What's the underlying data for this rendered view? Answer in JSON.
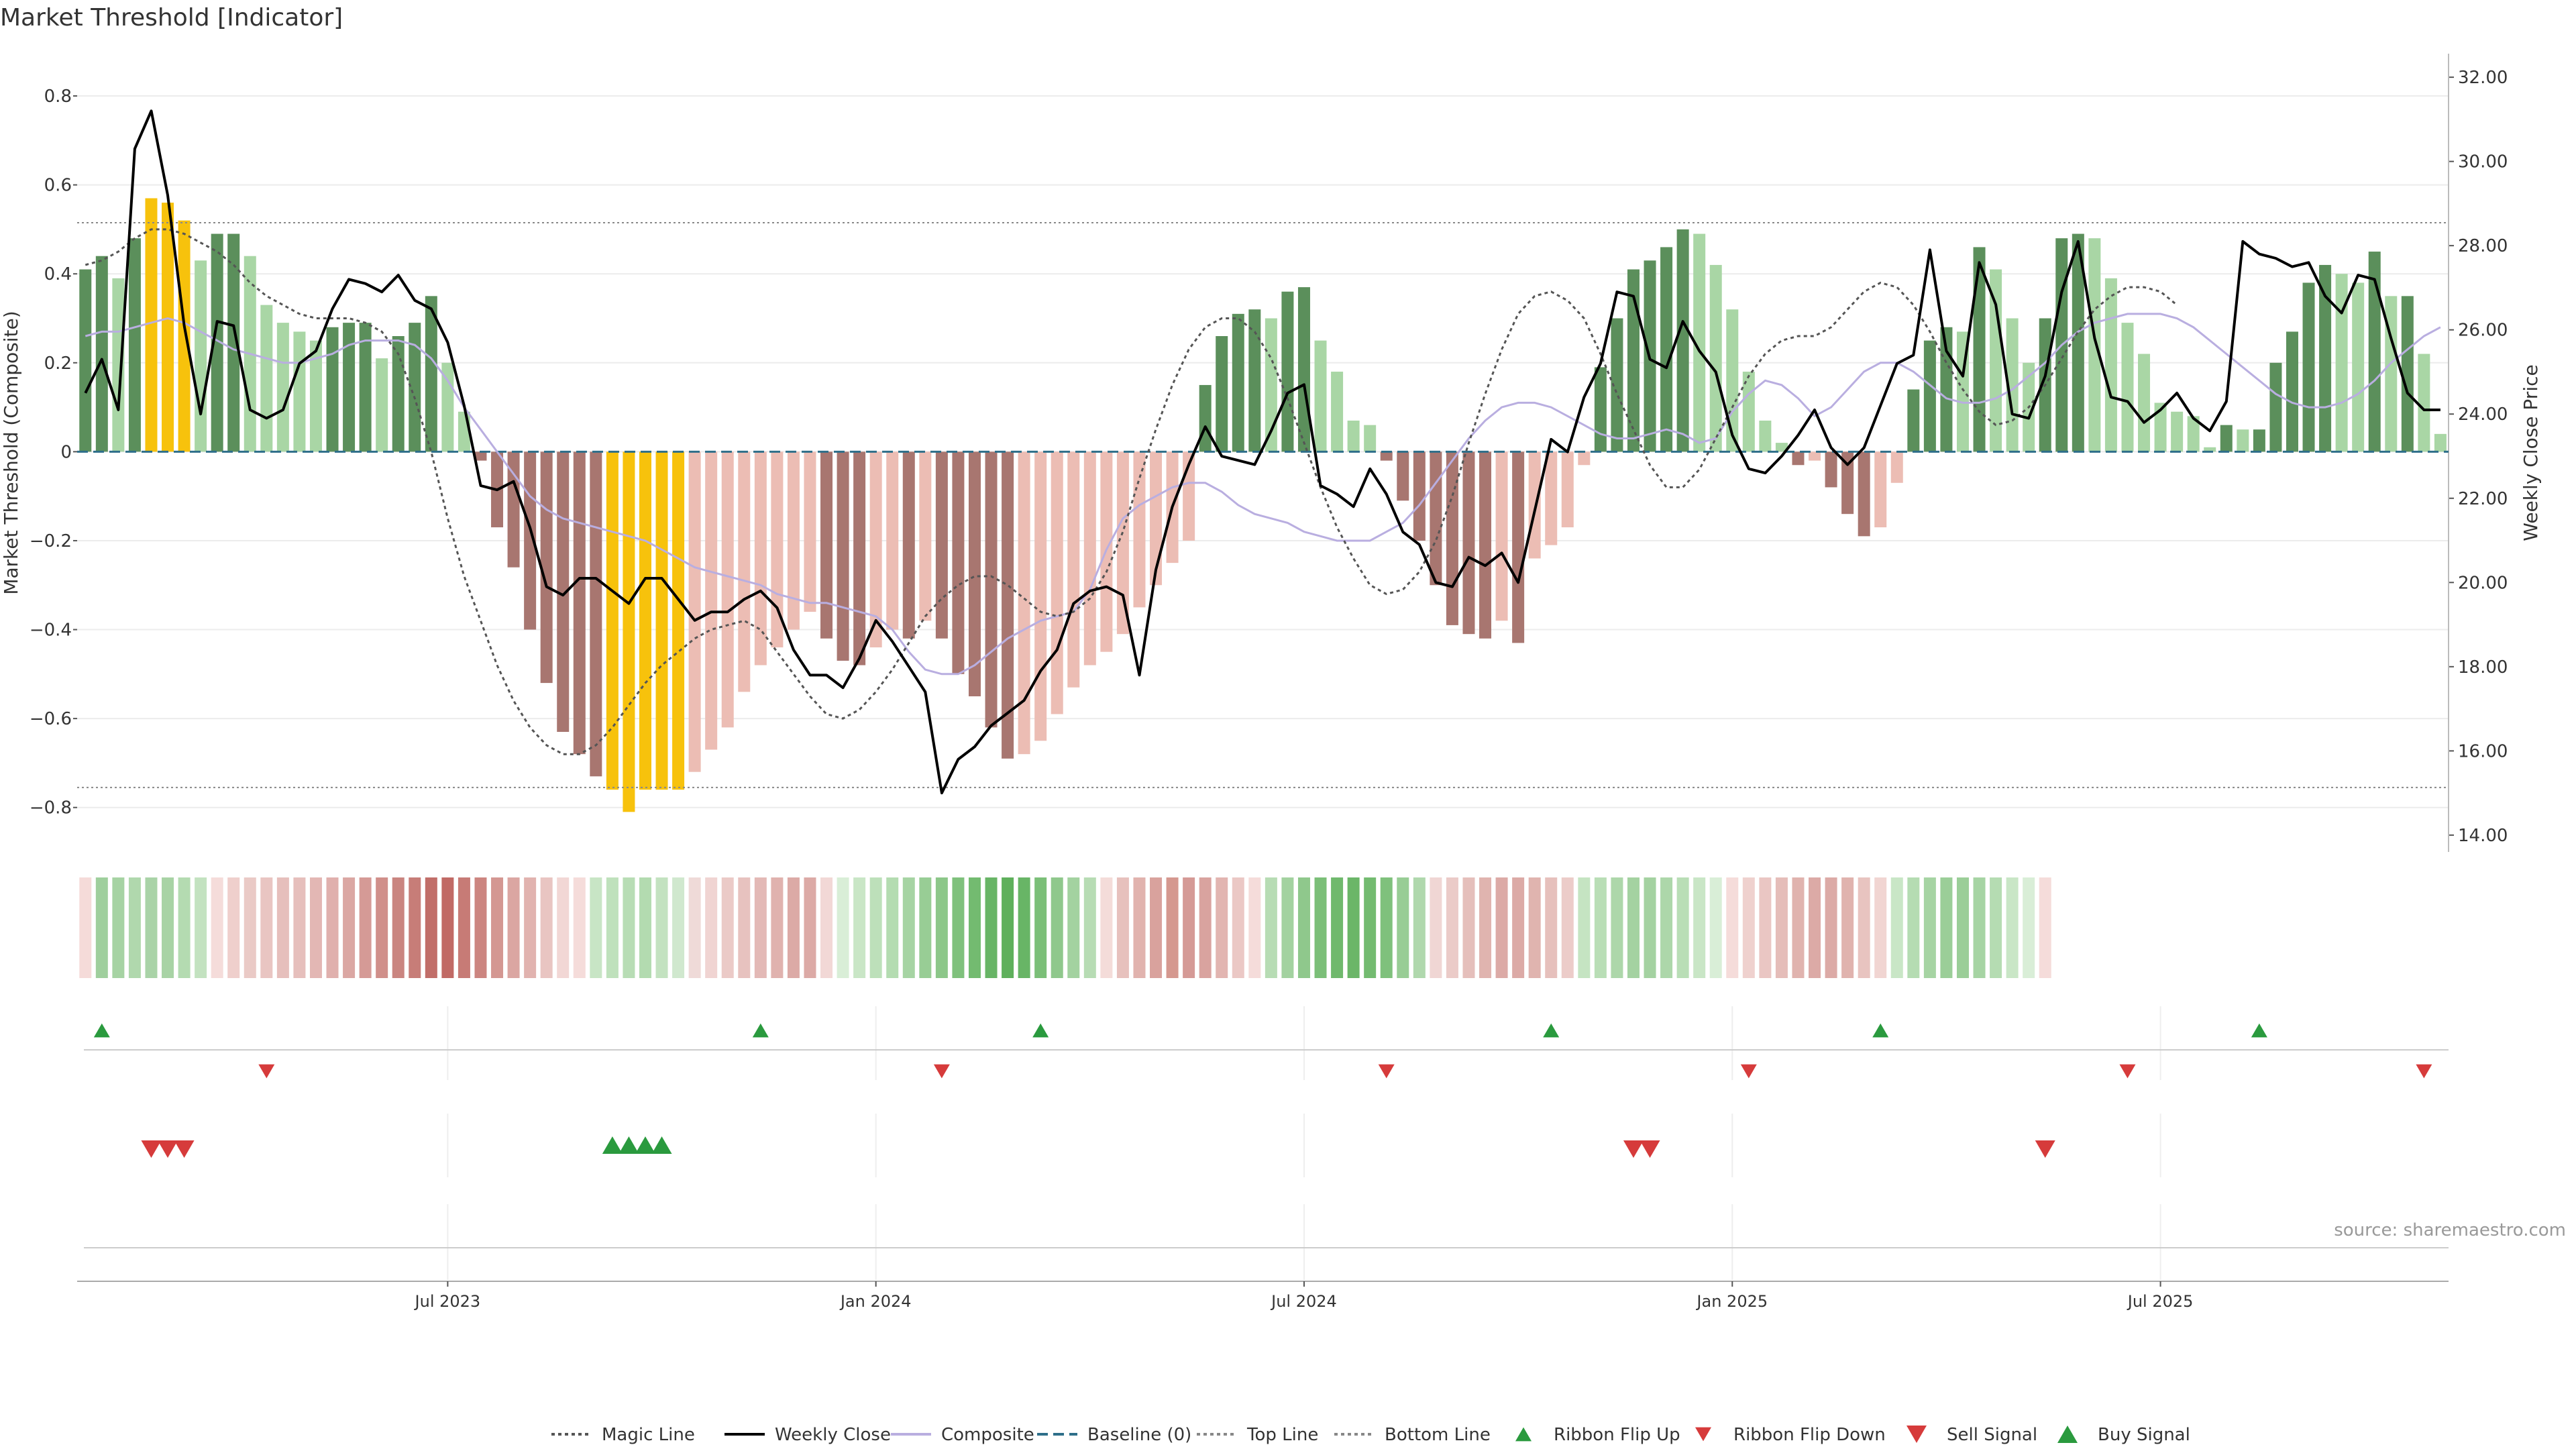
{
  "chart_data": {
    "type": "bar",
    "title": "Market Threshold [Indicator]",
    "ylabel": "Market Threshold (Composite)",
    "y2label": "Weekly Close Price",
    "ylim": [
      -0.9,
      0.88
    ],
    "y2lim": [
      13.6,
      32.4
    ],
    "yticks": [
      {
        "v": 0.8,
        "label": "0.8"
      },
      {
        "v": 0.6,
        "label": "0.6"
      },
      {
        "v": 0.4,
        "label": "0.4"
      },
      {
        "v": 0.2,
        "label": "0.2"
      },
      {
        "v": 0,
        "label": "0"
      },
      {
        "v": -0.2,
        "label": "−0.2"
      },
      {
        "v": -0.4,
        "label": "−0.4"
      },
      {
        "v": -0.6,
        "label": "−0.6"
      },
      {
        "v": -0.8,
        "label": "−0.8"
      }
    ],
    "y2ticks": [
      {
        "v": 32,
        "label": "32.00"
      },
      {
        "v": 30,
        "label": "30.00"
      },
      {
        "v": 28,
        "label": "28.00"
      },
      {
        "v": 26,
        "label": "26.00"
      },
      {
        "v": 24,
        "label": "24.00"
      },
      {
        "v": 22,
        "label": "22.00"
      },
      {
        "v": 20,
        "label": "20.00"
      },
      {
        "v": 18,
        "label": "18.00"
      },
      {
        "v": 16,
        "label": "16.00"
      },
      {
        "v": 14,
        "label": "14.00"
      }
    ],
    "xticks": [
      {
        "week": 22,
        "label": "Jul 2023"
      },
      {
        "week": 48,
        "label": "Jan 2024"
      },
      {
        "week": 74,
        "label": "Jul 2024"
      },
      {
        "week": 100,
        "label": "Jan 2025"
      },
      {
        "week": 126,
        "label": "Jul 2025"
      }
    ],
    "top_line": 0.515,
    "bottom_line": -0.755,
    "weeks": 144,
    "composite": [
      0.41,
      0.44,
      0.39,
      0.48,
      0.57,
      0.56,
      0.52,
      0.43,
      0.49,
      0.49,
      0.44,
      0.33,
      0.29,
      0.27,
      0.25,
      0.28,
      0.29,
      0.29,
      0.21,
      0.26,
      0.29,
      0.35,
      0.2,
      0.09,
      -0.02,
      -0.17,
      -0.26,
      -0.4,
      -0.52,
      -0.63,
      -0.68,
      -0.73,
      -0.76,
      -0.81,
      -0.76,
      -0.76,
      -0.76,
      -0.72,
      -0.67,
      -0.62,
      -0.54,
      -0.48,
      -0.44,
      -0.4,
      -0.36,
      -0.42,
      -0.47,
      -0.48,
      -0.44,
      -0.4,
      -0.42,
      -0.38,
      -0.42,
      -0.5,
      -0.55,
      -0.62,
      -0.69,
      -0.68,
      -0.65,
      -0.59,
      -0.53,
      -0.48,
      -0.45,
      -0.41,
      -0.35,
      -0.3,
      -0.25,
      -0.2,
      0.15,
      0.26,
      0.31,
      0.32,
      0.3,
      0.36,
      0.37,
      0.25,
      0.18,
      0.07,
      0.06,
      -0.02,
      -0.11,
      -0.2,
      -0.3,
      -0.39,
      -0.41,
      -0.42,
      -0.38,
      -0.43,
      -0.24,
      -0.21,
      -0.17,
      -0.03,
      0.19,
      0.3,
      0.41,
      0.43,
      0.46,
      0.5,
      0.49,
      0.42,
      0.32,
      0.18,
      0.07,
      0.02,
      -0.03,
      -0.02,
      -0.08,
      -0.14,
      -0.19,
      -0.17,
      -0.07,
      0.14,
      0.25,
      0.28,
      0.27,
      0.46,
      0.41,
      0.3,
      0.2,
      0.3,
      0.48,
      0.49,
      0.48,
      0.39,
      0.29,
      0.22,
      0.11,
      0.09,
      0.08,
      0.01,
      0.06,
      0.05,
      0.05,
      0.2,
      0.27,
      0.38,
      0.42,
      0.4,
      0.38,
      0.45,
      0.35,
      0.35,
      0.22,
      0.04
    ],
    "weekly_close": [
      24.5,
      25.3,
      24.1,
      30.3,
      31.2,
      29.2,
      26.1,
      24.0,
      26.2,
      26.1,
      24.1,
      23.9,
      24.1,
      25.2,
      25.5,
      26.5,
      27.2,
      27.1,
      26.9,
      27.3,
      26.7,
      26.5,
      25.7,
      24.2,
      22.3,
      22.2,
      22.4,
      21.3,
      19.9,
      19.7,
      20.1,
      20.1,
      19.8,
      19.5,
      20.1,
      20.1,
      19.6,
      19.1,
      19.3,
      19.3,
      19.6,
      19.8,
      19.4,
      18.4,
      17.8,
      17.8,
      17.5,
      18.2,
      19.1,
      18.6,
      18.0,
      17.4,
      15.0,
      15.8,
      16.1,
      16.6,
      16.9,
      17.2,
      17.9,
      18.4,
      19.5,
      19.8,
      19.9,
      19.7,
      17.8,
      20.3,
      21.8,
      22.8,
      23.7,
      23.0,
      22.9,
      22.8,
      23.6,
      24.5,
      24.7,
      22.3,
      22.1,
      21.8,
      22.7,
      22.1,
      21.2,
      20.9,
      20.0,
      19.9,
      20.6,
      20.4,
      20.7,
      20.0,
      21.7,
      23.4,
      23.1,
      24.4,
      25.2,
      26.9,
      26.8,
      25.3,
      25.1,
      26.2,
      25.5,
      25.0,
      23.5,
      22.7,
      22.6,
      23.0,
      23.5,
      24.1,
      23.2,
      22.8,
      23.2,
      24.2,
      25.2,
      25.4,
      27.9,
      25.5,
      24.9,
      27.6,
      26.6,
      24.0,
      23.9,
      24.9,
      26.9,
      28.1,
      25.8,
      24.4,
      24.3,
      23.8,
      24.1,
      24.5,
      23.9,
      23.6,
      24.3,
      28.1,
      27.8,
      27.7,
      27.5,
      27.6,
      26.8,
      26.4,
      27.3,
      27.2,
      25.8,
      24.5,
      24.1,
      24.1
    ],
    "magic_line": [
      0.42,
      0.43,
      0.45,
      0.48,
      0.5,
      0.5,
      0.49,
      0.47,
      0.45,
      0.42,
      0.38,
      0.35,
      0.33,
      0.31,
      0.3,
      0.3,
      0.3,
      0.29,
      0.27,
      0.22,
      0.12,
      0.0,
      -0.15,
      -0.28,
      -0.38,
      -0.48,
      -0.56,
      -0.62,
      -0.66,
      -0.68,
      -0.68,
      -0.66,
      -0.62,
      -0.57,
      -0.52,
      -0.48,
      -0.45,
      -0.42,
      -0.4,
      -0.39,
      -0.38,
      -0.4,
      -0.45,
      -0.5,
      -0.55,
      -0.59,
      -0.6,
      -0.58,
      -0.54,
      -0.49,
      -0.43,
      -0.37,
      -0.33,
      -0.3,
      -0.28,
      -0.28,
      -0.3,
      -0.33,
      -0.36,
      -0.37,
      -0.36,
      -0.33,
      -0.27,
      -0.18,
      -0.06,
      0.05,
      0.15,
      0.23,
      0.28,
      0.3,
      0.3,
      0.27,
      0.21,
      0.12,
      0.02,
      -0.08,
      -0.17,
      -0.24,
      -0.3,
      -0.32,
      -0.31,
      -0.27,
      -0.2,
      -0.1,
      0.02,
      0.13,
      0.23,
      0.31,
      0.35,
      0.36,
      0.34,
      0.3,
      0.22,
      0.13,
      0.05,
      -0.03,
      -0.08,
      -0.08,
      -0.04,
      0.03,
      0.1,
      0.17,
      0.22,
      0.25,
      0.26,
      0.26,
      0.28,
      0.32,
      0.36,
      0.38,
      0.37,
      0.33,
      0.27,
      0.2,
      0.14,
      0.09,
      0.06,
      0.07,
      0.1,
      0.15,
      0.21,
      0.27,
      0.32,
      0.35,
      0.37,
      0.37,
      0.36,
      0.33
    ],
    "composite_line": [
      0.26,
      0.27,
      0.27,
      0.28,
      0.29,
      0.3,
      0.29,
      0.27,
      0.25,
      0.23,
      0.22,
      0.21,
      0.2,
      0.2,
      0.21,
      0.22,
      0.24,
      0.25,
      0.25,
      0.25,
      0.24,
      0.21,
      0.16,
      0.1,
      0.05,
      0.0,
      -0.05,
      -0.1,
      -0.13,
      -0.15,
      -0.16,
      -0.17,
      -0.18,
      -0.19,
      -0.2,
      -0.22,
      -0.24,
      -0.26,
      -0.27,
      -0.28,
      -0.29,
      -0.3,
      -0.32,
      -0.33,
      -0.34,
      -0.34,
      -0.35,
      -0.36,
      -0.37,
      -0.4,
      -0.45,
      -0.49,
      -0.5,
      -0.5,
      -0.48,
      -0.45,
      -0.42,
      -0.4,
      -0.38,
      -0.37,
      -0.36,
      -0.31,
      -0.22,
      -0.15,
      -0.12,
      -0.1,
      -0.08,
      -0.07,
      -0.07,
      -0.09,
      -0.12,
      -0.14,
      -0.15,
      -0.16,
      -0.18,
      -0.19,
      -0.2,
      -0.2,
      -0.2,
      -0.18,
      -0.16,
      -0.12,
      -0.07,
      -0.02,
      0.03,
      0.07,
      0.1,
      0.11,
      0.11,
      0.1,
      0.08,
      0.06,
      0.04,
      0.03,
      0.03,
      0.04,
      0.05,
      0.04,
      0.02,
      0.03,
      0.09,
      0.13,
      0.16,
      0.15,
      0.12,
      0.08,
      0.1,
      0.14,
      0.18,
      0.2,
      0.2,
      0.18,
      0.15,
      0.12,
      0.11,
      0.11,
      0.12,
      0.14,
      0.17,
      0.2,
      0.24,
      0.27,
      0.29,
      0.3,
      0.31,
      0.31,
      0.31,
      0.3,
      0.28,
      0.25,
      0.22,
      0.19,
      0.16,
      0.13,
      0.11,
      0.1,
      0.1,
      0.11,
      0.13,
      0.16,
      0.2,
      0.23,
      0.26,
      0.28
    ],
    "bar_colors": {
      "strong_up": "#5b8f5b",
      "weak_up": "#a9d6a5",
      "strong_down": "#a87670",
      "weak_down": "#ecbdb4",
      "extreme": "#f7c20c"
    },
    "ribbon": {
      "colors": [
        "#f5dbd9",
        "#9fcf9d",
        "#a6d3a3",
        "#b0d8ad",
        "#a9d3a7",
        "#a8d3a5",
        "#b4dbb1",
        "#c3e2c0",
        "#f5dcda",
        "#efcfcc",
        "#eacac6",
        "#e9c5c2",
        "#e6bfbc",
        "#e6bfbc",
        "#e3b7b4",
        "#e0b0ad",
        "#dba7a3",
        "#d59a96",
        "#d08f8a",
        "#ca8580",
        "#c77d78",
        "#c16e69",
        "#c16a65",
        "#c77b76",
        "#cc8580",
        "#d49792",
        "#dba6a2",
        "#e1b3af",
        "#e9c5c2",
        "#f2d7d5",
        "#f5dcda",
        "#c8e5c5",
        "#bfe1bc",
        "#b8ddb5",
        "#b3dbb0",
        "#c3e2c0",
        "#d0e8ce",
        "#efdad8",
        "#f0d4d2",
        "#ebcac7",
        "#e7c2bf",
        "#e3b9b6",
        "#e0b2ae",
        "#dcaaa6",
        "#dcaaa6",
        "#f2d8d6",
        "#d9eed7",
        "#c9e6c6",
        "#bde0ba",
        "#b4dcb1",
        "#a6d4a3",
        "#98cd95",
        "#8cc789",
        "#7fc17c",
        "#73bb70",
        "#68b566",
        "#5fb05c",
        "#68b566",
        "#7bbf78",
        "#8fc88c",
        "#a3d2a0",
        "#b7dcb4",
        "#f4dcd9",
        "#e7c1bd",
        "#e1b3ae",
        "#d9a29d",
        "#d5988f",
        "#d59a96",
        "#d9a39f",
        "#e2b5b1",
        "#ebc8c5",
        "#f5dcda",
        "#b7dcb4",
        "#a3d2a0",
        "#8fc88c",
        "#7bbf78",
        "#70b96d",
        "#6bb668",
        "#73bb70",
        "#7fc17c",
        "#98cd95",
        "#b0d8ad",
        "#f0d6d4",
        "#ebcbc8",
        "#e5bfbb",
        "#e0b4af",
        "#dcaaa6",
        "#dcaaa6",
        "#e0b4af",
        "#e6c0bc",
        "#ecccc9",
        "#c5e4c2",
        "#b9deb6",
        "#add7aa",
        "#a4d2a1",
        "#a4d2a1",
        "#add7aa",
        "#b9deb6",
        "#c9e6c6",
        "#d9eed7",
        "#f5dcda",
        "#efd1ce",
        "#eac6c3",
        "#e5bdb9",
        "#e0b3ae",
        "#dcaaa6",
        "#dcaaa6",
        "#e0b3ae",
        "#e8c4c0",
        "#f1d5d2",
        "#c9e6c6",
        "#b5dcb2",
        "#a6d4a3",
        "#9bce98",
        "#9bce98",
        "#a6d4a3",
        "#b5dcb2",
        "#c9e6c6",
        "#d9eed7",
        "#f5dcda"
      ]
    },
    "ribbon_flip_up": [
      1,
      41,
      58,
      89,
      109,
      132
    ],
    "ribbon_flip_down": [
      11,
      52,
      79,
      101,
      124,
      142
    ],
    "sell_signal": [
      4,
      5,
      6,
      94,
      95,
      119
    ],
    "buy_signal": [
      32,
      33,
      34,
      35
    ],
    "legend": [
      {
        "label": "Magic Line",
        "kind": "line-dotted",
        "color": "#555555"
      },
      {
        "label": "Weekly Close",
        "kind": "line",
        "color": "#000000"
      },
      {
        "label": "Composite",
        "kind": "line",
        "color": "#b9aee0"
      },
      {
        "label": "Baseline (0)",
        "kind": "line-dashed",
        "color": "#2e6f8a"
      },
      {
        "label": "Top Line",
        "kind": "line-dotted",
        "color": "#888888"
      },
      {
        "label": "Bottom Line",
        "kind": "line-dotted",
        "color": "#888888"
      },
      {
        "label": "Ribbon Flip Up",
        "kind": "tri-up",
        "color": "#2a9a3e"
      },
      {
        "label": "Ribbon Flip Down",
        "kind": "tri-down",
        "color": "#d63b3b"
      },
      {
        "label": "Sell Signal",
        "kind": "tri-down-big",
        "color": "#d63b3b"
      },
      {
        "label": "Buy Signal",
        "kind": "tri-up-big",
        "color": "#2a9a3e"
      }
    ],
    "source": "source: sharemaestro.com"
  }
}
